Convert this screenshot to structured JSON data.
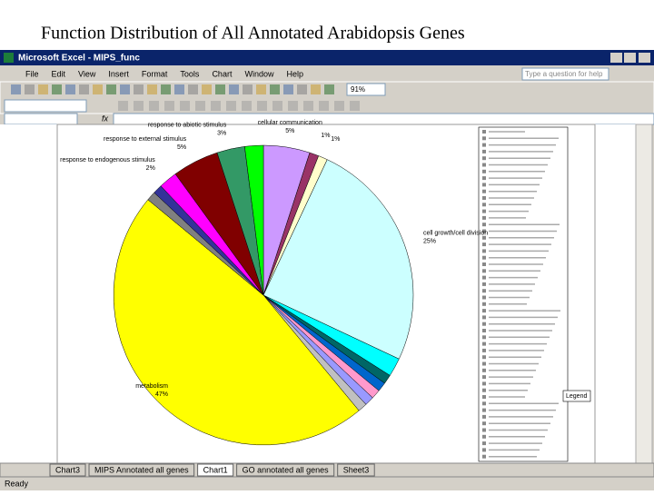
{
  "title": "Function Distribution of All Annotated Arabidopsis Genes",
  "window": {
    "title": "Microsoft Excel - MIPS_func",
    "menu": [
      "File",
      "Edit",
      "View",
      "Insert",
      "Format",
      "Tools",
      "Chart",
      "Window",
      "Help"
    ],
    "help_box": "Type a question for help",
    "zoom": "91%",
    "fx": "fx"
  },
  "chart_data": {
    "type": "pie",
    "categories": [
      "cellular communication",
      null,
      null,
      "cell growth/cell division",
      null,
      null,
      null,
      null,
      null,
      null,
      "metabolism",
      null,
      null,
      "response to endogenous stimulus",
      "response to external stimulus",
      "response to abiotic stimulus",
      null
    ],
    "values": [
      5,
      1,
      1,
      25,
      2,
      1,
      1,
      1,
      1,
      1,
      47,
      1,
      1,
      2,
      5,
      3,
      2
    ],
    "value_labels": [
      "5%",
      "1%",
      "1%",
      "25%",
      null,
      null,
      null,
      null,
      null,
      null,
      "47%",
      null,
      null,
      "2%",
      "5%",
      "3%",
      null
    ],
    "colors": [
      "#cc99ff",
      "#993366",
      "#ffffcc",
      "#ccffff",
      "#00ffff",
      "#006666",
      "#0066cc",
      "#ff99cc",
      "#9999ff",
      "#c0c0c0",
      "#ffff00",
      "#808080",
      "#333399",
      "#ff00ff",
      "#800000",
      "#339966",
      "#00ff00"
    ],
    "legend_button": "Legend"
  },
  "tabs": [
    "Chart3",
    "MIPS Annotated all genes",
    "Chart1",
    "GO annotated all genes",
    "Sheet3"
  ],
  "status": "Ready"
}
